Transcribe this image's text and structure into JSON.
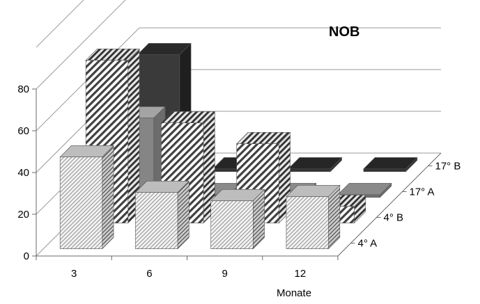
{
  "chart_data": {
    "type": "bar",
    "subtype": "3d-column",
    "title": "NOB",
    "xlabel": "Monate",
    "ylabel": "",
    "categories": [
      "3",
      "6",
      "9",
      "12"
    ],
    "ylim": [
      0,
      80
    ],
    "yticks": [
      "0",
      "20",
      "40",
      "60",
      "80"
    ],
    "grid": true,
    "legend": "none",
    "series": [
      {
        "name": "4° A",
        "values": [
          44,
          27,
          23,
          25
        ],
        "pattern": "dotted-light"
      },
      {
        "name": "4° B",
        "values": [
          78,
          48,
          38,
          8
        ],
        "pattern": "diagonal-stripes"
      },
      {
        "name": "17° A",
        "values": [
          38,
          0,
          0,
          0
        ],
        "pattern": "solid-gray"
      },
      {
        "name": "17° B",
        "values": [
          56,
          0,
          0,
          0
        ],
        "pattern": "solid-dark"
      }
    ],
    "colors": {
      "dark": "#3a3a3a",
      "gray": "#808080",
      "stripe": "#404040",
      "grid": "#9a9a9a"
    }
  }
}
